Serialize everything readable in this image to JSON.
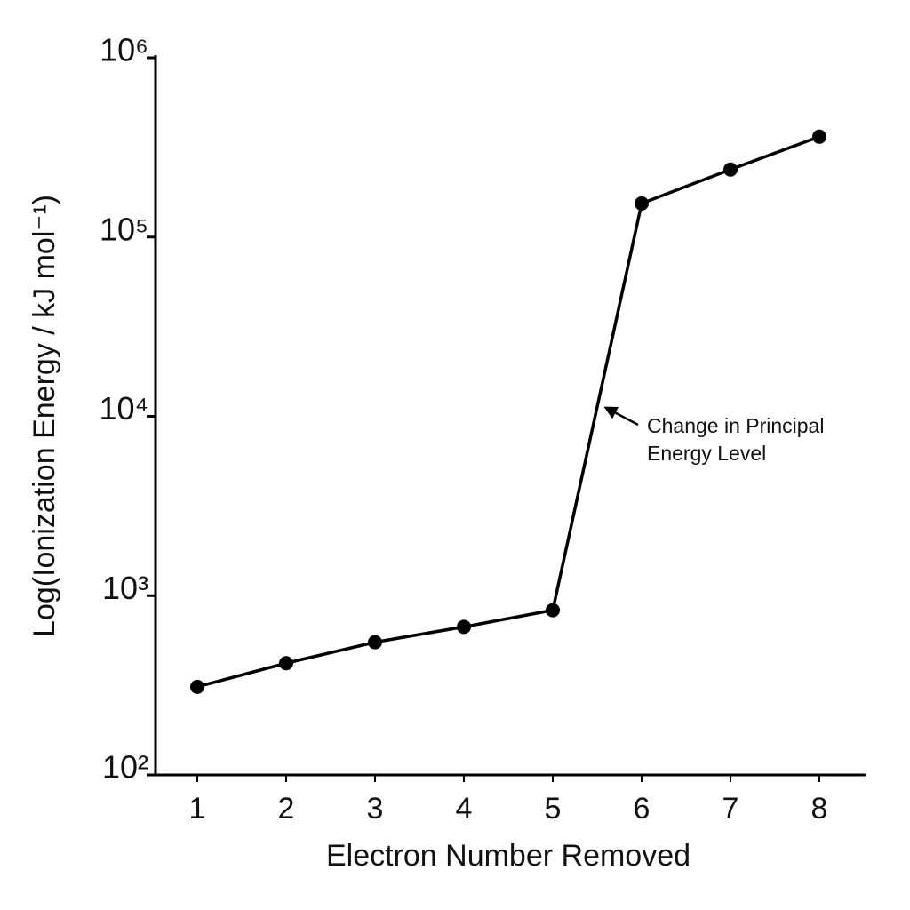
{
  "chart_data": {
    "type": "line",
    "x_label": "Electron Number Removed",
    "y_label": "Log(Ionization Energy / kJ mol⁻¹)",
    "x": [
      1,
      2,
      3,
      4,
      5,
      6,
      7,
      8
    ],
    "series": [
      {
        "color": "#000000",
        "values": [
          310,
          420,
          550,
          670,
          830,
          154000,
          238000,
          363000
        ]
      }
    ],
    "xlim": [
      0.53,
      8.53
    ],
    "xticks": [
      1,
      2,
      3,
      4,
      5,
      6,
      7,
      8
    ],
    "ylim": [
      100,
      1000000
    ],
    "yticks": [
      {
        "value": 100,
        "label": "10²"
      },
      {
        "value": 1000,
        "label": "10³"
      },
      {
        "value": 10000,
        "label": "10⁴"
      },
      {
        "value": 100000,
        "label": "10⁵"
      },
      {
        "value": 1000000,
        "label": "10⁶"
      }
    ],
    "y_scale": "log",
    "grid": false,
    "annotation": {
      "lines": [
        "Change in Principal",
        "Energy Level"
      ]
    }
  }
}
